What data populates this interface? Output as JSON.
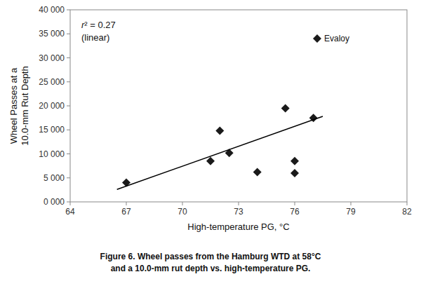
{
  "chart_data": {
    "type": "scatter",
    "title": "Figure 6.  Wheel passes from the Hamburg WTD at 58°C",
    "subtitle": "and a 10.0-mm rut depth vs. high-temperature PG.",
    "x_label": "High-temperature PG, °C",
    "y_label": "Wheel Passes at a\n10.0-mm Rut Depth",
    "annotations": [
      "r² = 0.27",
      "(linear)"
    ],
    "series": [
      {
        "type": "scatter",
        "marker": "diamond",
        "color": "#1a1a1a",
        "x": [
          67.0,
          71.5,
          72.0,
          72.5,
          74.0,
          75.5,
          76.0,
          76.0,
          77.0
        ],
        "values": [
          4000,
          8500,
          14800,
          10200,
          6200,
          19500,
          6000,
          8500,
          17500
        ]
      },
      {
        "type": "scatter",
        "name": "Evaloy",
        "marker": "diamond",
        "color": "#1a1a1a",
        "x": [
          77.2
        ],
        "values": [
          34000
        ]
      },
      {
        "type": "line",
        "color": "#000000",
        "x": [
          66.5,
          77.5
        ],
        "values": [
          2600,
          17800
        ]
      }
    ],
    "xlim": [
      64,
      82
    ],
    "xticks": [
      64,
      67,
      70,
      73,
      76,
      79,
      82
    ],
    "ylim": [
      0,
      40000
    ],
    "yticks": [
      {
        "value": 0,
        "label": "0 000"
      },
      {
        "value": 5000,
        "label": "5 000"
      },
      {
        "value": 10000,
        "label": "10 000"
      },
      {
        "value": 15000,
        "label": "15 000"
      },
      {
        "value": 20000,
        "label": "20 000"
      },
      {
        "value": 25000,
        "label": "25 000"
      },
      {
        "value": 30000,
        "label": "30 000"
      },
      {
        "value": 35000,
        "label": "35 000"
      },
      {
        "value": 40000,
        "label": "40 000"
      }
    ],
    "grid": false
  }
}
